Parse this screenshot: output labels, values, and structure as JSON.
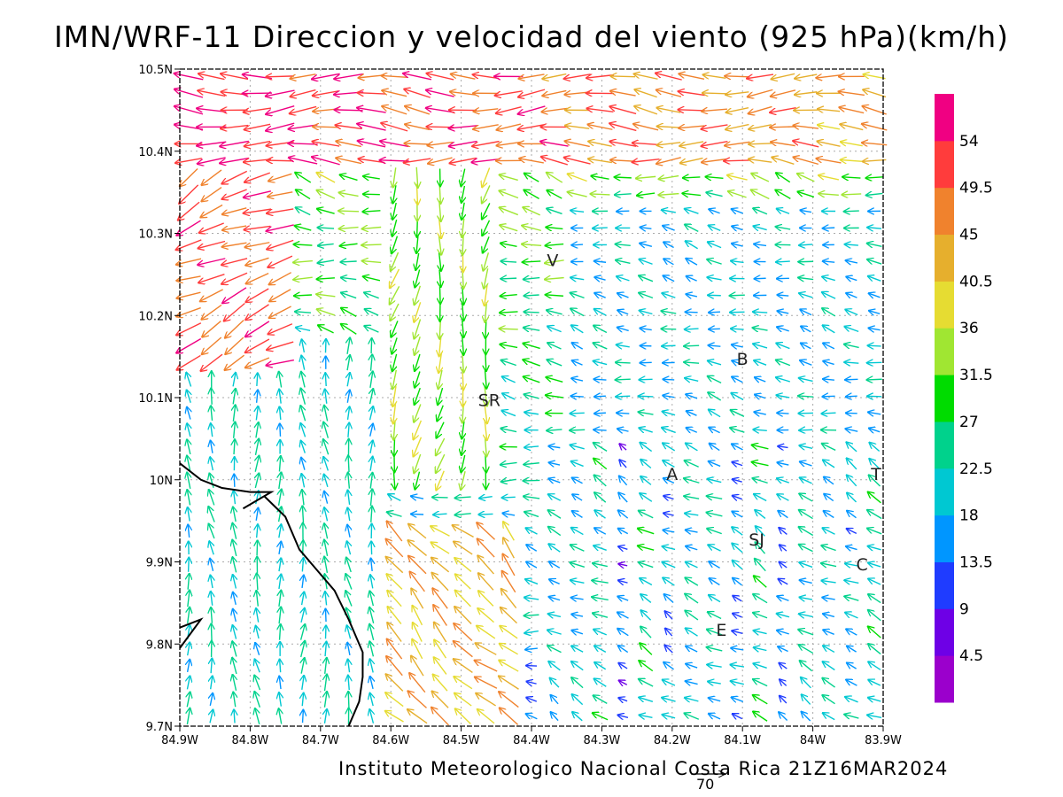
{
  "title": "IMN/WRF-11 Direccion y velocidad del viento (925 hPa)(km/h)",
  "footer": "Instituto Meteorologico Nacional Costa Rica 21Z16MAR2024",
  "reference_vector": {
    "value": 70,
    "label": "70"
  },
  "map": {
    "lon_ticks": [
      {
        "value": -84.9,
        "label": "84.9W"
      },
      {
        "value": -84.8,
        "label": "84.8W"
      },
      {
        "value": -84.7,
        "label": "84.7W"
      },
      {
        "value": -84.6,
        "label": "84.6W"
      },
      {
        "value": -84.5,
        "label": "84.5W"
      },
      {
        "value": -84.4,
        "label": "84.4W"
      },
      {
        "value": -84.3,
        "label": "84.3W"
      },
      {
        "value": -84.2,
        "label": "84.2W"
      },
      {
        "value": -84.1,
        "label": "84.1W"
      },
      {
        "value": -84.0,
        "label": "84W"
      },
      {
        "value": -83.9,
        "label": "83.9W"
      }
    ],
    "lat_ticks": [
      {
        "value": 10.5,
        "label": "10.5N"
      },
      {
        "value": 10.4,
        "label": "10.4N"
      },
      {
        "value": 10.3,
        "label": "10.3N"
      },
      {
        "value": 10.2,
        "label": "10.2N"
      },
      {
        "value": 10.1,
        "label": "10.1N"
      },
      {
        "value": 10.0,
        "label": "10N"
      },
      {
        "value": 9.9,
        "label": "9.9N"
      },
      {
        "value": 9.8,
        "label": "9.8N"
      },
      {
        "value": 9.7,
        "label": "9.7N"
      }
    ],
    "lon_range": [
      -84.9,
      -83.9
    ],
    "lat_range": [
      9.7,
      10.5
    ],
    "grid": true,
    "places": [
      {
        "label": "V",
        "lon": -84.37,
        "lat": 10.26
      },
      {
        "label": "SR",
        "lon": -84.46,
        "lat": 10.09
      },
      {
        "label": "B",
        "lon": -84.1,
        "lat": 10.14
      },
      {
        "label": "A",
        "lon": -84.2,
        "lat": 10.0
      },
      {
        "label": "SJ",
        "lon": -84.08,
        "lat": 9.92
      },
      {
        "label": "C",
        "lon": -83.93,
        "lat": 9.89
      },
      {
        "label": "E",
        "lon": -84.13,
        "lat": 9.81
      },
      {
        "label": "T",
        "lon": -83.91,
        "lat": 10.0
      }
    ],
    "coastline": [
      [
        -84.9,
        10.02
      ],
      [
        -84.87,
        10.0
      ],
      [
        -84.84,
        9.99
      ],
      [
        -84.8,
        9.985
      ],
      [
        -84.77,
        9.985
      ],
      [
        -84.81,
        9.965
      ],
      [
        -84.78,
        9.98
      ],
      [
        -84.75,
        9.955
      ],
      [
        -84.73,
        9.915
      ],
      [
        -84.71,
        9.895
      ],
      [
        -84.68,
        9.865
      ],
      [
        -84.66,
        9.83
      ],
      [
        -84.65,
        9.81
      ],
      [
        -84.64,
        9.79
      ],
      [
        -84.64,
        9.76
      ],
      [
        -84.645,
        9.73
      ],
      [
        -84.66,
        9.7
      ]
    ],
    "peninsula": [
      [
        -84.9,
        9.82
      ],
      [
        -84.87,
        9.83
      ],
      [
        -84.9,
        9.795
      ]
    ]
  },
  "colorbar": {
    "colors": [
      "#9b00cc",
      "#6e00e6",
      "#1f3cff",
      "#0096ff",
      "#00c8d2",
      "#00d28c",
      "#00dc00",
      "#a0e632",
      "#e6dc32",
      "#e6af2d",
      "#f0822d",
      "#ff3c3c",
      "#f00082"
    ],
    "labels": [
      "4.5",
      "9",
      "13.5",
      "18",
      "22.5",
      "27",
      "31.5",
      "36",
      "40.5",
      "45",
      "49.5",
      "54"
    ]
  }
}
